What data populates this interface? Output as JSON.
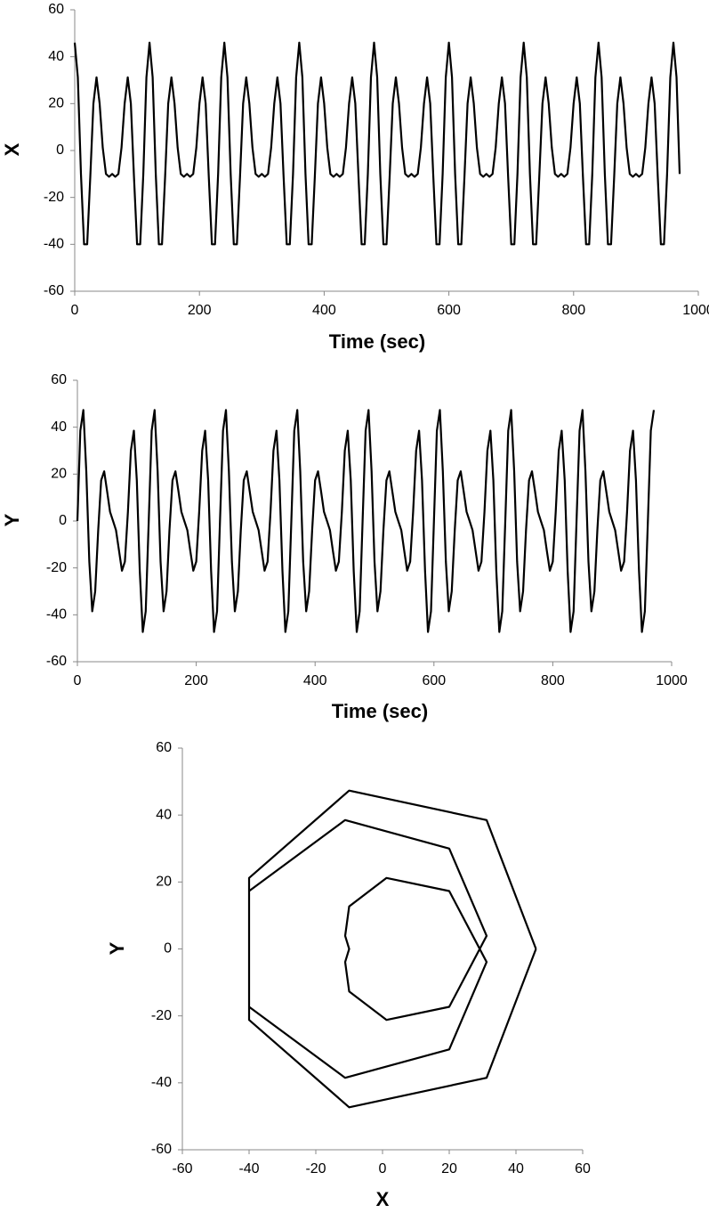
{
  "chart_data": [
    {
      "type": "line",
      "xlabel": "Time (sec)",
      "ylabel": "X",
      "color": "#000000",
      "xlim": [
        0,
        1000
      ],
      "ylim": [
        -60,
        60
      ],
      "xticks": [
        0,
        200,
        400,
        600,
        800,
        1000
      ],
      "yticks": [
        -60,
        -40,
        -20,
        0,
        20,
        40,
        60
      ],
      "x": [
        0,
        5,
        10,
        15,
        20,
        25,
        30,
        35,
        40,
        45,
        50,
        55,
        60,
        65,
        70,
        75,
        80,
        85,
        90,
        95,
        100,
        105,
        110,
        115,
        120,
        125,
        130,
        135,
        140,
        145,
        150,
        155,
        160,
        165,
        170,
        175,
        180,
        185,
        190,
        195,
        200,
        205,
        210,
        215,
        220,
        225,
        230,
        235,
        240,
        245,
        250,
        255,
        260,
        265,
        270,
        275,
        280,
        285,
        290,
        295,
        300,
        305,
        310,
        315,
        320,
        325,
        330,
        335,
        340,
        345,
        350,
        355,
        360,
        365,
        370,
        375,
        380,
        385,
        390,
        395,
        400,
        405,
        410,
        415,
        420,
        425,
        430,
        435,
        440,
        445,
        450,
        455,
        460,
        465,
        470,
        475,
        480,
        485,
        490,
        495,
        500,
        505,
        510,
        515,
        520,
        525,
        530,
        535,
        540,
        545,
        550,
        555,
        560,
        565,
        570,
        575,
        580,
        585,
        590,
        595,
        600,
        605,
        610,
        615,
        620,
        625,
        630,
        635,
        640,
        645,
        650,
        655,
        660,
        665,
        670,
        675,
        680,
        685,
        690,
        695,
        700,
        705,
        710,
        715,
        720,
        725,
        730,
        735,
        740,
        745,
        750,
        755,
        760,
        765,
        770,
        775,
        780,
        785,
        790,
        795,
        800,
        805,
        810,
        815,
        820,
        825,
        830,
        835,
        840,
        845,
        850,
        855,
        860,
        865,
        870,
        875,
        880,
        885,
        890,
        895,
        900,
        905,
        910,
        915,
        920,
        925,
        930,
        935,
        940,
        945,
        950,
        955,
        960,
        965,
        970
      ],
      "values": [
        46,
        31.2,
        -10,
        -40,
        -40,
        -11.2,
        20,
        31.2,
        20,
        1.2,
        -10,
        -11.2,
        -10,
        -11.2,
        -10,
        1.2,
        20,
        31.2,
        20,
        -11.2,
        -40,
        -40,
        -10,
        31.2,
        46,
        31.2,
        -10,
        -40,
        -40,
        -11.2,
        20,
        31.2,
        20,
        1.2,
        -10,
        -11.2,
        -10,
        -11.2,
        -10,
        1.2,
        20,
        31.2,
        20,
        -11.2,
        -40,
        -40,
        -10,
        31.2,
        46,
        31.2,
        -10,
        -40,
        -40,
        -11.2,
        20,
        31.2,
        20,
        1.2,
        -10,
        -11.2,
        -10,
        -11.2,
        -10,
        1.2,
        20,
        31.2,
        20,
        -11.2,
        -40,
        -40,
        -10,
        31.2,
        46,
        31.2,
        -10,
        -40,
        -40,
        -11.2,
        20,
        31.2,
        20,
        1.2,
        -10,
        -11.2,
        -10,
        -11.2,
        -10,
        1.2,
        20,
        31.2,
        20,
        -11.2,
        -40,
        -40,
        -10,
        31.2,
        46,
        31.2,
        -10,
        -40,
        -40,
        -11.2,
        20,
        31.2,
        20,
        1.2,
        -10,
        -11.2,
        -10,
        -11.2,
        -10,
        1.2,
        20,
        31.2,
        20,
        -11.2,
        -40,
        -40,
        -10,
        31.2,
        46,
        31.2,
        -10,
        -40,
        -40,
        -11.2,
        20,
        31.2,
        20,
        1.2,
        -10,
        -11.2,
        -10,
        -11.2,
        -10,
        1.2,
        20,
        31.2,
        20,
        -11.2,
        -40,
        -40,
        -10,
        31.2,
        46,
        31.2,
        -10,
        -40,
        -40,
        -11.2,
        20,
        31.2,
        20,
        1.2,
        -10,
        -11.2,
        -10,
        -11.2,
        -10,
        1.2,
        20,
        31.2,
        20,
        -11.2,
        -40,
        -40,
        -10,
        31.2,
        46,
        31.2,
        -10,
        -40,
        -40,
        -11.2,
        20,
        31.2,
        20,
        1.2,
        -10,
        -11.2,
        -10,
        -11.2,
        -10,
        1.2,
        20,
        31.2,
        20,
        -11.2,
        -40,
        -40,
        -10,
        31.2,
        46,
        31.2,
        -10
      ]
    },
    {
      "type": "line",
      "xlabel": "Time (sec)",
      "ylabel": "Y",
      "color": "#000000",
      "xlim": [
        0,
        1000
      ],
      "ylim": [
        -60,
        60
      ],
      "xticks": [
        0,
        200,
        400,
        600,
        800,
        1000
      ],
      "yticks": [
        -60,
        -40,
        -20,
        0,
        20,
        40,
        60
      ],
      "x": [
        0,
        5,
        10,
        15,
        20,
        25,
        30,
        35,
        40,
        45,
        50,
        55,
        60,
        65,
        70,
        75,
        80,
        85,
        90,
        95,
        100,
        105,
        110,
        115,
        120,
        125,
        130,
        135,
        140,
        145,
        150,
        155,
        160,
        165,
        170,
        175,
        180,
        185,
        190,
        195,
        200,
        205,
        210,
        215,
        220,
        225,
        230,
        235,
        240,
        245,
        250,
        255,
        260,
        265,
        270,
        275,
        280,
        285,
        290,
        295,
        300,
        305,
        310,
        315,
        320,
        325,
        330,
        335,
        340,
        345,
        350,
        355,
        360,
        365,
        370,
        375,
        380,
        385,
        390,
        395,
        400,
        405,
        410,
        415,
        420,
        425,
        430,
        435,
        440,
        445,
        450,
        455,
        460,
        465,
        470,
        475,
        480,
        485,
        490,
        495,
        500,
        505,
        510,
        515,
        520,
        525,
        530,
        535,
        540,
        545,
        550,
        555,
        560,
        565,
        570,
        575,
        580,
        585,
        590,
        595,
        600,
        605,
        610,
        615,
        620,
        625,
        630,
        635,
        640,
        645,
        650,
        655,
        660,
        665,
        670,
        675,
        680,
        685,
        690,
        695,
        700,
        705,
        710,
        715,
        720,
        725,
        730,
        735,
        740,
        745,
        750,
        755,
        760,
        765,
        770,
        775,
        780,
        785,
        790,
        795,
        800,
        805,
        810,
        815,
        820,
        825,
        830,
        835,
        840,
        845,
        850,
        855,
        860,
        865,
        870,
        875,
        880,
        885,
        890,
        895,
        900,
        905,
        910,
        915,
        920,
        925,
        930,
        935,
        940,
        945,
        950,
        955,
        960,
        965,
        970
      ],
      "values": [
        0,
        38.5,
        47.3,
        21.2,
        -17.3,
        -38.5,
        -30,
        -3.9,
        17.3,
        21.2,
        12.7,
        3.9,
        0,
        -3.9,
        -12.7,
        -21.2,
        -17.3,
        3.9,
        30,
        38.5,
        17.3,
        -21.2,
        -47.3,
        -38.5,
        0,
        38.5,
        47.3,
        21.2,
        -17.3,
        -38.5,
        -30,
        -3.9,
        17.3,
        21.2,
        12.7,
        3.9,
        0,
        -3.9,
        -12.7,
        -21.2,
        -17.3,
        3.9,
        30,
        38.5,
        17.3,
        -21.2,
        -47.3,
        -38.5,
        0,
        38.5,
        47.3,
        21.2,
        -17.3,
        -38.5,
        -30,
        -3.9,
        17.3,
        21.2,
        12.7,
        3.9,
        0,
        -3.9,
        -12.7,
        -21.2,
        -17.3,
        3.9,
        30,
        38.5,
        17.3,
        -21.2,
        -47.3,
        -38.5,
        0,
        38.5,
        47.3,
        21.2,
        -17.3,
        -38.5,
        -30,
        -3.9,
        17.3,
        21.2,
        12.7,
        3.9,
        0,
        -3.9,
        -12.7,
        -21.2,
        -17.3,
        3.9,
        30,
        38.5,
        17.3,
        -21.2,
        -47.3,
        -38.5,
        0,
        38.5,
        47.3,
        21.2,
        -17.3,
        -38.5,
        -30,
        -3.9,
        17.3,
        21.2,
        12.7,
        3.9,
        0,
        -3.9,
        -12.7,
        -21.2,
        -17.3,
        3.9,
        30,
        38.5,
        17.3,
        -21.2,
        -47.3,
        -38.5,
        0,
        38.5,
        47.3,
        21.2,
        -17.3,
        -38.5,
        -30,
        -3.9,
        17.3,
        21.2,
        12.7,
        3.9,
        0,
        -3.9,
        -12.7,
        -21.2,
        -17.3,
        3.9,
        30,
        38.5,
        17.3,
        -21.2,
        -47.3,
        -38.5,
        0,
        38.5,
        47.3,
        21.2,
        -17.3,
        -38.5,
        -30,
        -3.9,
        17.3,
        21.2,
        12.7,
        3.9,
        0,
        -3.9,
        -12.7,
        -21.2,
        -17.3,
        3.9,
        30,
        38.5,
        17.3,
        -21.2,
        -47.3,
        -38.5,
        0,
        38.5,
        47.3,
        21.2,
        -17.3,
        -38.5,
        -30,
        -3.9,
        17.3,
        21.2,
        12.7,
        3.9,
        0,
        -3.9,
        -12.7,
        -21.2,
        -17.3,
        3.9,
        30,
        38.5,
        17.3,
        -21.2,
        -47.3,
        -38.5,
        0,
        38.5,
        47.3
      ]
    },
    {
      "type": "line",
      "xlabel": "X",
      "ylabel": "Y",
      "color": "#000000",
      "xlim": [
        -60,
        60
      ],
      "ylim": [
        -60,
        60
      ],
      "xticks": [
        -60,
        -40,
        -20,
        0,
        20,
        40,
        60
      ],
      "yticks": [
        -60,
        -40,
        -20,
        0,
        20,
        40,
        60
      ],
      "x": [
        46,
        31.2,
        -10,
        -40,
        -40,
        -11.2,
        20,
        31.2,
        20,
        1.2,
        -10,
        -11.2,
        -10,
        -11.2,
        -10,
        1.2,
        20,
        31.2,
        20,
        -11.2,
        -40,
        -40,
        -10,
        31.2,
        46
      ],
      "values": [
        0,
        38.5,
        47.3,
        21.2,
        -17.3,
        -38.5,
        -30,
        -3.9,
        17.3,
        21.2,
        12.7,
        3.9,
        0,
        -3.9,
        -12.7,
        -21.2,
        -17.3,
        3.9,
        30,
        38.5,
        17.3,
        -21.2,
        -47.3,
        -38.5,
        0
      ]
    }
  ]
}
